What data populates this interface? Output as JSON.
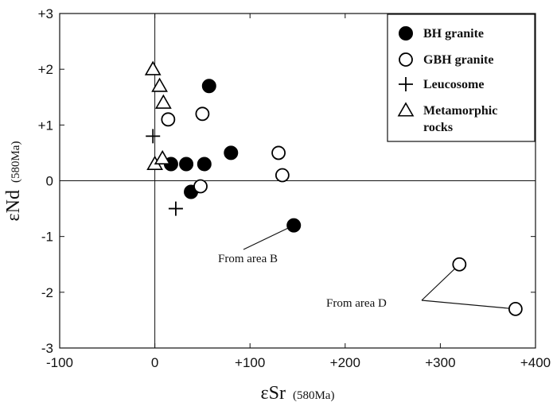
{
  "chart_data": {
    "type": "scatter",
    "title": "",
    "xlabel": "εSr",
    "xlabel_sub": "(580Ma)",
    "ylabel": "εNd",
    "ylabel_sub": "(580Ma)",
    "xlim": [
      -100,
      400
    ],
    "ylim": [
      -3,
      3
    ],
    "x_ticks": [
      -100,
      0,
      100,
      200,
      300,
      400
    ],
    "x_tick_labels": [
      "-100",
      "0",
      "+100",
      "+200",
      "+300",
      "+400"
    ],
    "y_ticks": [
      -3,
      -2,
      -1,
      0,
      1,
      2,
      3
    ],
    "y_tick_labels": [
      "-3",
      "-2",
      "-1",
      "0",
      "+1",
      "+2",
      "+3"
    ],
    "grid": false,
    "reference_lines": {
      "x": 0,
      "y": 0
    },
    "legend_position": "top-right",
    "series": [
      {
        "name": "BH granite",
        "marker": "filled-circle",
        "points": [
          [
            17,
            0.3
          ],
          [
            33,
            0.3
          ],
          [
            52,
            0.3
          ],
          [
            57,
            1.7
          ],
          [
            80,
            0.5
          ],
          [
            38,
            -0.2
          ],
          [
            146,
            -0.8
          ]
        ]
      },
      {
        "name": "GBH granite",
        "marker": "open-circle",
        "points": [
          [
            14,
            1.1
          ],
          [
            50,
            1.2
          ],
          [
            130,
            0.5
          ],
          [
            134,
            0.1
          ],
          [
            48,
            -0.1
          ],
          [
            320,
            -1.5
          ],
          [
            379,
            -2.3
          ]
        ]
      },
      {
        "name": "Leucosome",
        "marker": "plus",
        "points": [
          [
            -2,
            0.8
          ],
          [
            22,
            -0.5
          ]
        ]
      },
      {
        "name": "Metamorphic\nrocks",
        "legend_lines": [
          "Metamorphic",
          "rocks"
        ],
        "marker": "open-triangle",
        "points": [
          [
            -2,
            2.0
          ],
          [
            5,
            1.7
          ],
          [
            9,
            1.4
          ],
          [
            0,
            0.3
          ],
          [
            8,
            0.4
          ]
        ]
      }
    ],
    "annotations": [
      {
        "text": "From area B",
        "points_to": [
          [
            146,
            -0.8
          ]
        ]
      },
      {
        "text": "From area D",
        "points_to": [
          [
            320,
            -1.5
          ],
          [
            379,
            -2.3
          ]
        ]
      }
    ]
  }
}
